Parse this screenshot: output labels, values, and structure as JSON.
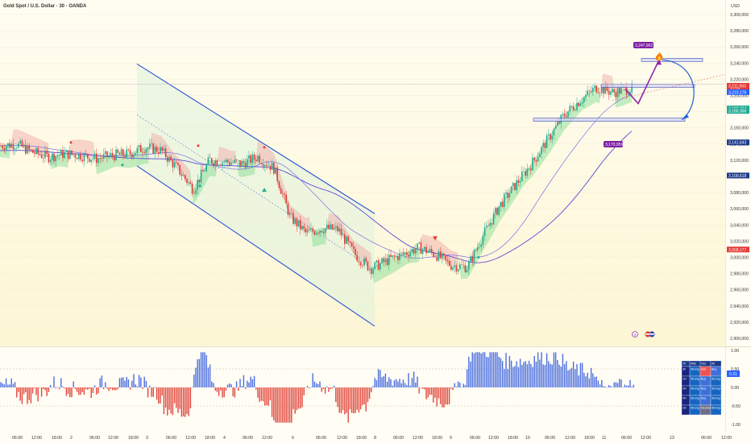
{
  "header": {
    "title": "Gold Spot / U.S. Dollar · 30 · OANDA",
    "currency": "USD"
  },
  "price_axis": {
    "ticks": [
      "3,300,000",
      "3,280,000",
      "3,260,000",
      "3,240,000",
      "3,220,000",
      "3,200,000",
      "3,180,000",
      "3,160,000",
      "3,140,000",
      "3,120,000",
      "3,100,000",
      "3,080,000",
      "3,060,000",
      "3,040,000",
      "3,020,000",
      "3,000,000",
      "2,980,000",
      "2,960,000",
      "2,940,000",
      "2,920,000",
      "2,900,000"
    ],
    "tags": [
      {
        "label": "3,211,550",
        "sub": "17:29",
        "color": "#e53935"
      },
      {
        "label": "3,210,176",
        "color": "#2962ff"
      },
      {
        "label": "3,182,334",
        "color": "#22ab94"
      },
      {
        "label": "3,180,356",
        "color": "#22ab94"
      },
      {
        "label": "3,141,643",
        "color": "#1e3a8a"
      },
      {
        "label": "3,100,618",
        "color": "#1e3a8a"
      },
      {
        "label": "3,009,177",
        "color": "#e53935"
      }
    ]
  },
  "annotations": {
    "target_tag": "3,247,902",
    "low_tag": "3,170,959",
    "fire_icon": "fire-icon"
  },
  "time_axis": {
    "ticks": [
      "06:00",
      "12:00",
      "18:00",
      "2",
      "06:00",
      "12:00",
      "18:00",
      "3",
      "06:00",
      "12:00",
      "18:00",
      "4",
      "06:00",
      "12:00",
      "6",
      "06:00",
      "12:00",
      "18:00",
      "8",
      "06:00",
      "12:00",
      "18:00",
      "9",
      "06:00",
      "12:00",
      "18:00",
      "10",
      "06:00",
      "12:00",
      "18:00",
      "11",
      "06:00",
      "12:00",
      "13",
      "06:00",
      "12:00"
    ]
  },
  "oscillator": {
    "axis_ticks": [
      "1.00",
      "0.50",
      "0.00",
      "-0.50",
      "-1.00"
    ],
    "value_tag": "0.31"
  },
  "signal_table": {
    "headers": [
      "TF",
      "MAs",
      "Osc",
      "All"
    ],
    "rows": [
      [
        "30",
        "Strong Buy",
        "Sell",
        "Buy"
      ],
      [
        "1H",
        "Strong Buy",
        "Buy",
        "Strong Buy"
      ],
      [
        "2H",
        "Strong Buy",
        "Buy",
        "Strong Buy"
      ],
      [
        "4H",
        "Strong Buy",
        "Buy",
        "Strong Buy"
      ],
      [
        "1D",
        "Strong Buy",
        "Neutral",
        "Strong Buy"
      ]
    ]
  },
  "colors": {
    "background": "#fefbea",
    "up": "#22ab94",
    "down": "#e53935",
    "channel": "#2950d6",
    "cloud_bull": "#7ddc8c",
    "cloud_bear": "#f2a4a4",
    "ma": "#5b4bd8",
    "arrow": "#8e24aa",
    "hist_up": "#4a6ee0",
    "hist_down": "#e2463c"
  },
  "chart_data": {
    "type": "line",
    "title": "Gold Spot / U.S. Dollar · 30 · OANDA",
    "xlabel": "",
    "ylabel": "",
    "ylim": [
      2900,
      3310
    ],
    "x": [
      0,
      20,
      40,
      60,
      80,
      100,
      120,
      140,
      160,
      180,
      200,
      220,
      240,
      260,
      280,
      300,
      320,
      340,
      360,
      380,
      400,
      420,
      440,
      460,
      480,
      500,
      520,
      540,
      560,
      580,
      600,
      620,
      640,
      660,
      680,
      700,
      720,
      740,
      760,
      780
    ],
    "series": [
      {
        "name": "",
        "values": [
          3138,
          3140,
          3130,
          3124,
          3128,
          3126,
          3122,
          3126,
          3128,
          3136,
          3132,
          3110,
          3084,
          3120,
          3118,
          3116,
          3124,
          3110,
          3050,
          3030,
          3036,
          3034,
          3004,
          2986,
          2996,
          3004,
          3012,
          3004,
          2990,
          2988,
          3028,
          3064,
          3090,
          3116,
          3146,
          3176,
          3194,
          3210,
          3204,
          3208
        ]
      }
    ],
    "channel": {
      "upper": [
        [
          170,
          3239
        ],
        [
          465,
          3054
        ]
      ],
      "lower": [
        [
          170,
          3113
        ],
        [
          465,
          2915
        ]
      ]
    },
    "levels": [
      3244,
      3212,
      3170
    ],
    "projection": [
      3208,
      3190,
      3244,
      3170
    ],
    "oscillator_range": [
      -1.0,
      1.0
    ],
    "legend": "none"
  }
}
